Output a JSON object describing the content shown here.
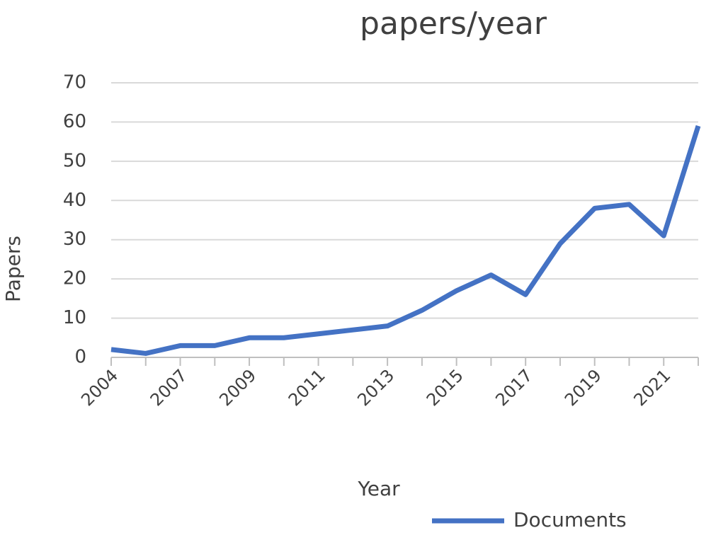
{
  "chart_data": {
    "type": "line",
    "title": "papers/year",
    "x_label": "Year",
    "y_label": "Papers",
    "categories": [
      "2004",
      null,
      "2007",
      null,
      "2009",
      null,
      "2011",
      null,
      "2013",
      null,
      "2015",
      null,
      "2017",
      null,
      "2019",
      null,
      "2021",
      null
    ],
    "series": [
      {
        "name": "Documents",
        "color": "#4472c4",
        "values": [
          2,
          1,
          3,
          3,
          5,
          5,
          6,
          7,
          8,
          12,
          17,
          21,
          16,
          29,
          38,
          39,
          31,
          59
        ]
      }
    ],
    "ylim": [
      0,
      70
    ],
    "yticks": [
      0,
      10,
      20,
      30,
      40,
      50,
      60,
      70
    ],
    "grid": true,
    "legend": "bottom"
  }
}
